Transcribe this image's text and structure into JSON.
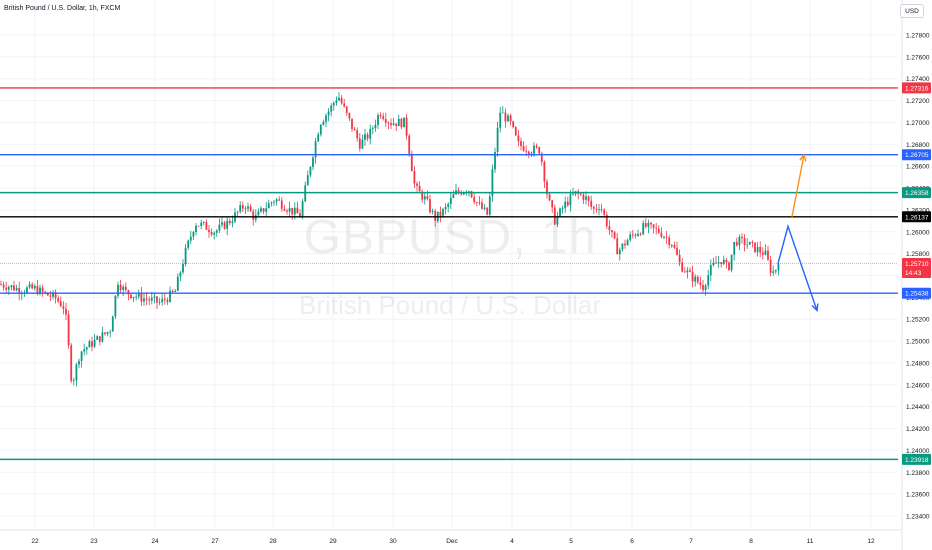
{
  "header": {
    "symbol_title": "British Pound / U.S. Dollar, 1h, FXCM",
    "currency_button": "USD"
  },
  "watermark": {
    "symbol": "GBPUSD, 1h",
    "description": "British Pound / U.S. Dollar"
  },
  "chart_data": {
    "type": "candlestick",
    "y_axis": {
      "ticks": [
        "1.27800",
        "1.27600",
        "1.27400",
        "1.27200",
        "1.27000",
        "1.26800",
        "1.26600",
        "1.26400",
        "1.26200",
        "1.26000",
        "1.25800",
        "1.25600",
        "1.25400",
        "1.25200",
        "1.25000",
        "1.24800",
        "1.24600",
        "1.24400",
        "1.24200",
        "1.24000",
        "1.23800",
        "1.23600",
        "1.23400"
      ],
      "range": [
        1.233,
        1.28
      ]
    },
    "x_axis": {
      "ticks": [
        "22",
        "23",
        "24",
        "27",
        "28",
        "29",
        "30",
        "Dec",
        "4",
        "5",
        "6",
        "7",
        "8",
        "11",
        "12"
      ]
    },
    "levels": [
      {
        "value": 1.27316,
        "label": "1.27316",
        "color": "#f23645"
      },
      {
        "value": 1.26705,
        "label": "1.26705",
        "color": "#2962ff"
      },
      {
        "value": 1.26358,
        "label": "1.26358",
        "color": "#089981"
      },
      {
        "value": 1.26137,
        "label": "1.26137",
        "color": "#000000"
      },
      {
        "value": 1.25438,
        "label": "1.25438",
        "color": "#2962ff"
      },
      {
        "value": 1.23918,
        "label": "1.23918",
        "color": "#089981"
      }
    ],
    "last_price": {
      "value": 1.2571,
      "label": "1.25710",
      "countdown": "14:43",
      "color": "#f23645"
    },
    "anchors": [
      {
        "x": 0,
        "v": 1.2552
      },
      {
        "x": 10,
        "v": 1.255
      },
      {
        "x": 20,
        "v": 1.2547
      },
      {
        "x": 35,
        "v": 1.2548
      },
      {
        "x": 45,
        "v": 1.2543
      },
      {
        "x": 55,
        "v": 1.254
      },
      {
        "x": 65,
        "v": 1.253
      },
      {
        "x": 70,
        "v": 1.248
      },
      {
        "x": 72,
        "v": 1.246
      },
      {
        "x": 80,
        "v": 1.249
      },
      {
        "x": 95,
        "v": 1.25
      },
      {
        "x": 110,
        "v": 1.251
      },
      {
        "x": 118,
        "v": 1.2555
      },
      {
        "x": 125,
        "v": 1.2545
      },
      {
        "x": 140,
        "v": 1.254
      },
      {
        "x": 160,
        "v": 1.2535
      },
      {
        "x": 175,
        "v": 1.2545
      },
      {
        "x": 185,
        "v": 1.258
      },
      {
        "x": 195,
        "v": 1.2608
      },
      {
        "x": 205,
        "v": 1.2605
      },
      {
        "x": 215,
        "v": 1.26
      },
      {
        "x": 230,
        "v": 1.261
      },
      {
        "x": 245,
        "v": 1.2625
      },
      {
        "x": 255,
        "v": 1.2612
      },
      {
        "x": 265,
        "v": 1.2622
      },
      {
        "x": 275,
        "v": 1.263
      },
      {
        "x": 290,
        "v": 1.262
      },
      {
        "x": 300,
        "v": 1.2615
      },
      {
        "x": 310,
        "v": 1.266
      },
      {
        "x": 320,
        "v": 1.27
      },
      {
        "x": 330,
        "v": 1.2712
      },
      {
        "x": 338,
        "v": 1.2725
      },
      {
        "x": 350,
        "v": 1.27
      },
      {
        "x": 360,
        "v": 1.268
      },
      {
        "x": 370,
        "v": 1.269
      },
      {
        "x": 380,
        "v": 1.271
      },
      {
        "x": 390,
        "v": 1.27
      },
      {
        "x": 405,
        "v": 1.27
      },
      {
        "x": 415,
        "v": 1.264
      },
      {
        "x": 425,
        "v": 1.263
      },
      {
        "x": 435,
        "v": 1.2612
      },
      {
        "x": 445,
        "v": 1.262
      },
      {
        "x": 455,
        "v": 1.2635
      },
      {
        "x": 468,
        "v": 1.264
      },
      {
        "x": 478,
        "v": 1.2625
      },
      {
        "x": 488,
        "v": 1.2615
      },
      {
        "x": 493,
        "v": 1.266
      },
      {
        "x": 500,
        "v": 1.271
      },
      {
        "x": 510,
        "v": 1.27
      },
      {
        "x": 518,
        "v": 1.268
      },
      {
        "x": 530,
        "v": 1.2675
      },
      {
        "x": 540,
        "v": 1.2675
      },
      {
        "x": 548,
        "v": 1.263
      },
      {
        "x": 555,
        "v": 1.261
      },
      {
        "x": 565,
        "v": 1.2625
      },
      {
        "x": 575,
        "v": 1.2635
      },
      {
        "x": 585,
        "v": 1.2632
      },
      {
        "x": 593,
        "v": 1.262
      },
      {
        "x": 600,
        "v": 1.2625
      },
      {
        "x": 608,
        "v": 1.2605
      },
      {
        "x": 618,
        "v": 1.2582
      },
      {
        "x": 630,
        "v": 1.2595
      },
      {
        "x": 645,
        "v": 1.2605
      },
      {
        "x": 660,
        "v": 1.26
      },
      {
        "x": 672,
        "v": 1.259
      },
      {
        "x": 680,
        "v": 1.257
      },
      {
        "x": 690,
        "v": 1.256
      },
      {
        "x": 703,
        "v": 1.255
      },
      {
        "x": 712,
        "v": 1.2568
      },
      {
        "x": 722,
        "v": 1.2575
      },
      {
        "x": 728,
        "v": 1.2565
      },
      {
        "x": 735,
        "v": 1.2592
      },
      {
        "x": 745,
        "v": 1.259
      },
      {
        "x": 755,
        "v": 1.2585
      },
      {
        "x": 765,
        "v": 1.258
      },
      {
        "x": 772,
        "v": 1.2562
      },
      {
        "x": 780,
        "v": 1.2571
      }
    ],
    "projections": [
      {
        "color": "#f7931a",
        "points": [
          [
            1.26137,
            792
          ],
          [
            1.26705,
            804
          ]
        ],
        "arrow": "up"
      },
      {
        "color": "#2962ff",
        "points": [
          [
            1.2571,
            778
          ],
          [
            1.2605,
            788
          ],
          [
            1.2528,
            817
          ]
        ],
        "arrow": "down"
      }
    ]
  }
}
